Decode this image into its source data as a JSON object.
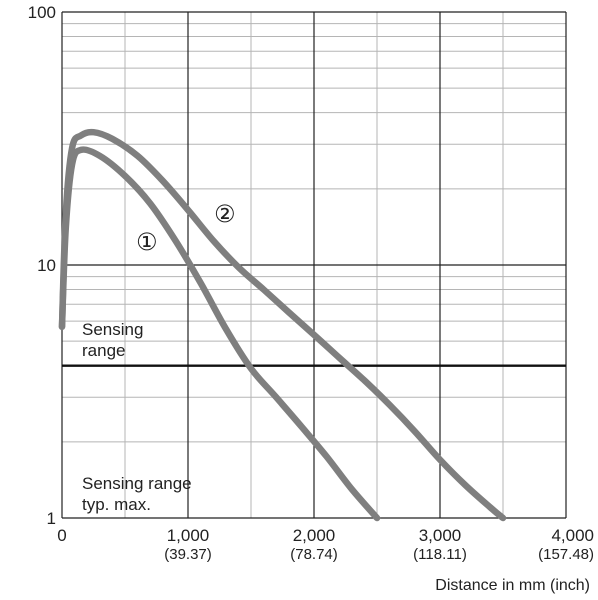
{
  "chart_data": {
    "type": "line",
    "title": "",
    "xlabel": "Distance in mm (inch)",
    "ylabel": "",
    "xlim": [
      0,
      4000
    ],
    "ylim": [
      1,
      100
    ],
    "yscale": "log",
    "grid": true,
    "x_ticks": [
      {
        "value": 0,
        "label": "0",
        "sublabel": ""
      },
      {
        "value": 1000,
        "label": "1,000",
        "sublabel": "(39.37)"
      },
      {
        "value": 2000,
        "label": "2,000",
        "sublabel": "(78.74)"
      },
      {
        "value": 3000,
        "label": "3,000",
        "sublabel": "(118.11)"
      },
      {
        "value": 4000,
        "label": "4,000",
        "sublabel": "(157.48)"
      }
    ],
    "y_ticks": [
      {
        "value": 1,
        "label": "1"
      },
      {
        "value": 10,
        "label": "10"
      },
      {
        "value": 100,
        "label": "100"
      }
    ],
    "series": [
      {
        "name": "①",
        "x": [
          0,
          30,
          80,
          150,
          300,
          500,
          700,
          900,
          1100,
          1300,
          1500,
          1700,
          1900,
          2100,
          2300,
          2500
        ],
        "y": [
          5.7,
          14,
          25,
          28.5,
          27,
          22.5,
          17.5,
          12.5,
          8.5,
          5.6,
          3.9,
          3.0,
          2.3,
          1.75,
          1.3,
          1.0
        ]
      },
      {
        "name": "②",
        "x": [
          0,
          30,
          80,
          150,
          250,
          400,
          600,
          800,
          1000,
          1200,
          1400,
          1600,
          1800,
          2000,
          2200,
          2400,
          2600,
          2800,
          3000,
          3200,
          3400,
          3500
        ],
        "y": [
          5.7,
          16,
          29,
          32.5,
          33.5,
          31.5,
          27,
          21.5,
          16.5,
          12.5,
          9.8,
          8.0,
          6.5,
          5.3,
          4.3,
          3.5,
          2.8,
          2.2,
          1.7,
          1.35,
          1.1,
          1.0
        ]
      }
    ],
    "reference_lines": [
      {
        "y": 4.0,
        "label": "Sensing range"
      }
    ],
    "annotations": [
      {
        "text": "Sensing range typ. max."
      }
    ],
    "colors": {
      "curve": "#7f7f7f",
      "grid_major": "#222222",
      "grid_minor": "#b5b5b5",
      "reference": "#111111"
    }
  }
}
